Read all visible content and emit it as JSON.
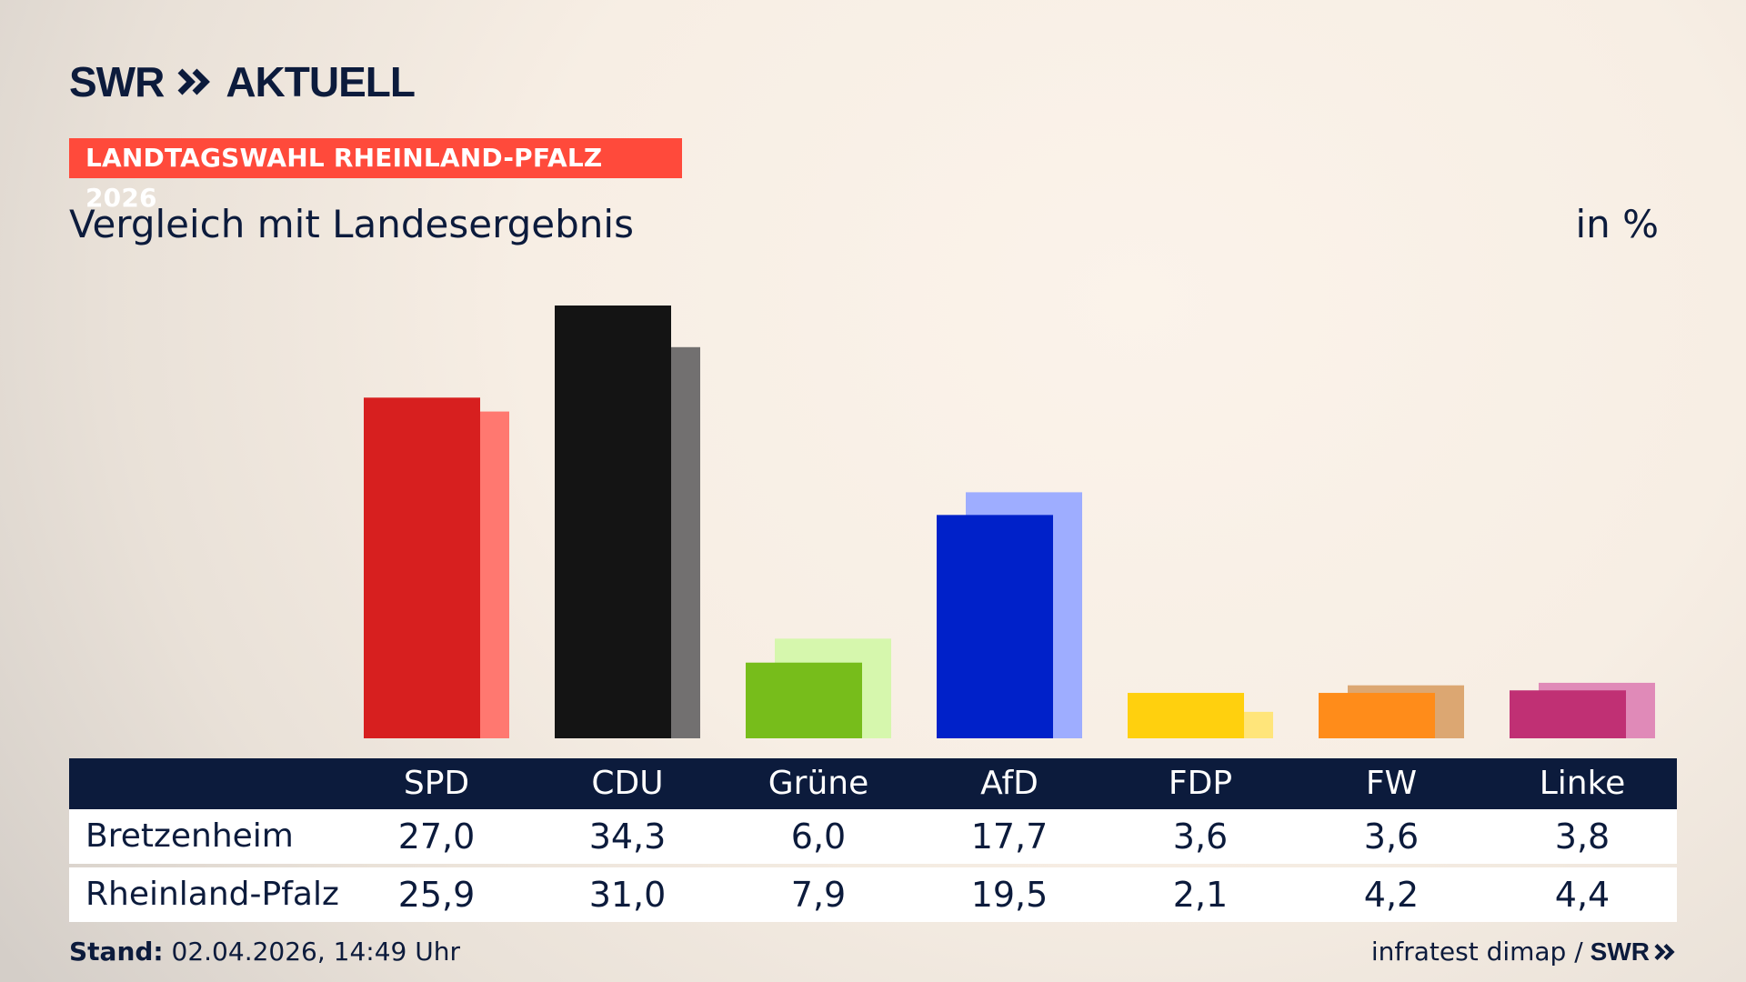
{
  "brand": {
    "logo_left": "SWR",
    "logo_right": "AKTUELL",
    "icon": "double-chevron-icon"
  },
  "kicker": "LANDTAGSWAHL RHEINLAND-PFALZ 2026",
  "subtitle": "Vergleich mit Landesergebnis",
  "unit": "in %",
  "chart_data": {
    "type": "bar",
    "categories": [
      "SPD",
      "CDU",
      "Grüne",
      "AfD",
      "FDP",
      "FW",
      "Linke"
    ],
    "series": [
      {
        "name": "Bretzenheim",
        "values": [
          27.0,
          34.3,
          6.0,
          17.7,
          3.6,
          3.6,
          3.8
        ],
        "colors": [
          "#d71f1f",
          "#141414",
          "#77bd1b",
          "#0021c9",
          "#ffd00e",
          "#ff8c1a",
          "#c03074"
        ],
        "labels": [
          "27,0",
          "34,3",
          "6,0",
          "17,7",
          "3,6",
          "3,6",
          "3,8"
        ]
      },
      {
        "name": "Rheinland-Pfalz",
        "values": [
          25.9,
          31.0,
          7.9,
          19.5,
          2.1,
          4.2,
          4.4
        ],
        "colors": [
          "#ff7870",
          "#727070",
          "#d6f7ad",
          "#9eadff",
          "#ffe57a",
          "#dca772",
          "#e08ab8"
        ],
        "labels": [
          "25,9",
          "31,0",
          "7,9",
          "19,5",
          "2,1",
          "4,2",
          "4,4"
        ]
      }
    ],
    "ylim": [
      0,
      34.3
    ],
    "grid": false,
    "legend": "table-below"
  },
  "table": {
    "rows": [
      "Bretzenheim",
      "Rheinland-Pfalz"
    ]
  },
  "footer": {
    "stand_label": "Stand:",
    "stand_value": "02.04.2026, 14:49 Uhr",
    "source": "infratest dimap /",
    "source_brand": "SWR"
  }
}
